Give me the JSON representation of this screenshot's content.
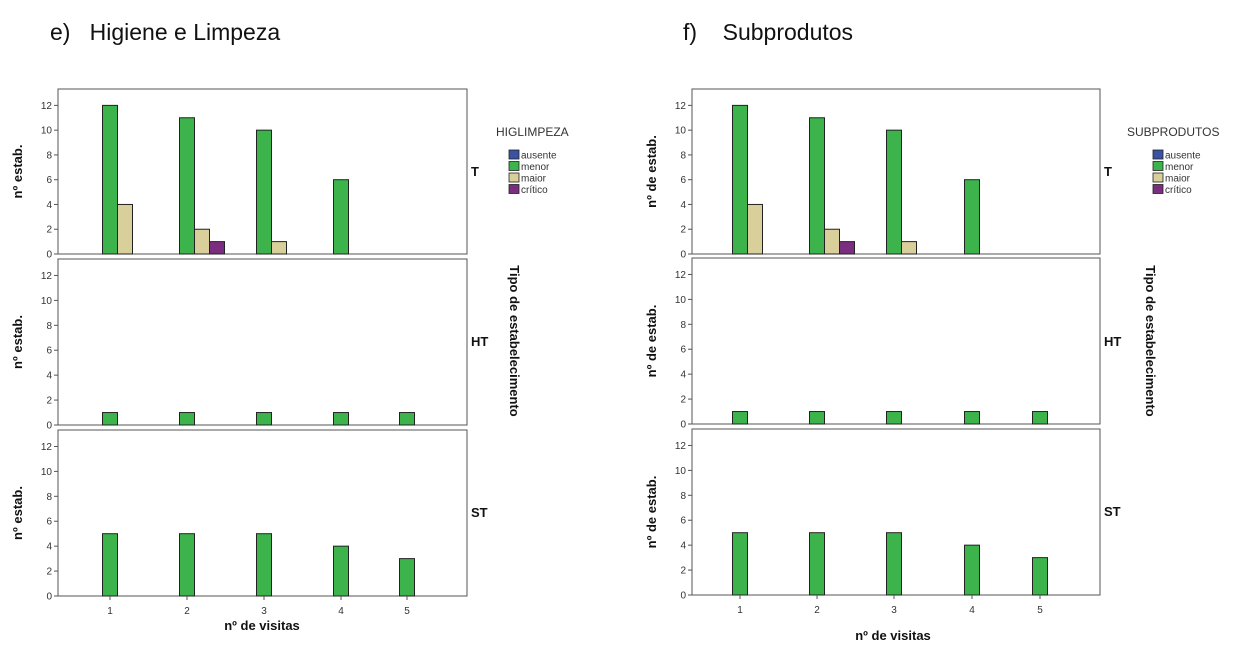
{
  "chart_data": [
    {
      "type": "bar",
      "heading": "e)   Higiene e Limpeza",
      "legend_title": "HIGLIMPEZA",
      "legend_position": "top-right",
      "ylabel": "nº estab.",
      "xlabel": "nº de visitas",
      "facet_title": "Tipo de estabelecimento",
      "categories": [
        "1",
        "2",
        "3",
        "4",
        "5"
      ],
      "ylim": [
        0,
        13
      ],
      "yticks": [
        "0",
        "2",
        "4",
        "6",
        "8",
        "10",
        "12"
      ],
      "grid": false,
      "panels": [
        {
          "label": "T",
          "series": [
            {
              "name": "ausente",
              "values": [
                0,
                0,
                0,
                0,
                0
              ]
            },
            {
              "name": "menor",
              "values": [
                12,
                11,
                10,
                6,
                0
              ]
            },
            {
              "name": "maior",
              "values": [
                4,
                2,
                1,
                0,
                0
              ]
            },
            {
              "name": "crítico",
              "values": [
                0,
                1,
                0,
                0,
                0
              ]
            }
          ]
        },
        {
          "label": "HT",
          "series": [
            {
              "name": "ausente",
              "values": [
                0,
                0,
                0,
                0,
                0
              ]
            },
            {
              "name": "menor",
              "values": [
                1,
                1,
                1,
                1,
                1
              ]
            },
            {
              "name": "maior",
              "values": [
                0,
                0,
                0,
                0,
                0
              ]
            },
            {
              "name": "crítico",
              "values": [
                0,
                0,
                0,
                0,
                0
              ]
            }
          ]
        },
        {
          "label": "ST",
          "series": [
            {
              "name": "ausente",
              "values": [
                0,
                0,
                0,
                0,
                0
              ]
            },
            {
              "name": "menor",
              "values": [
                5,
                5,
                5,
                4,
                3
              ]
            },
            {
              "name": "maior",
              "values": [
                0,
                0,
                0,
                0,
                0
              ]
            },
            {
              "name": "crítico",
              "values": [
                0,
                0,
                0,
                0,
                0
              ]
            }
          ]
        }
      ]
    },
    {
      "type": "bar",
      "heading": "f)    Subprodutos",
      "legend_title": "SUBPRODUTOS",
      "legend_position": "top-right",
      "ylabel": "nº de estab.",
      "xlabel": "nº de visitas",
      "facet_title": "Tipo de estabelecimento",
      "categories": [
        "1",
        "2",
        "3",
        "4",
        "5"
      ],
      "ylim": [
        0,
        13
      ],
      "yticks": [
        "0",
        "2",
        "4",
        "6",
        "8",
        "10",
        "12"
      ],
      "grid": false,
      "panels": [
        {
          "label": "T",
          "series": [
            {
              "name": "ausente",
              "values": [
                0,
                0,
                0,
                0,
                0
              ]
            },
            {
              "name": "menor",
              "values": [
                12,
                11,
                10,
                6,
                0
              ]
            },
            {
              "name": "maior",
              "values": [
                4,
                2,
                1,
                0,
                0
              ]
            },
            {
              "name": "crítico",
              "values": [
                0,
                1,
                0,
                0,
                0
              ]
            }
          ]
        },
        {
          "label": "HT",
          "series": [
            {
              "name": "ausente",
              "values": [
                0,
                0,
                0,
                0,
                0
              ]
            },
            {
              "name": "menor",
              "values": [
                1,
                1,
                1,
                1,
                1
              ]
            },
            {
              "name": "maior",
              "values": [
                0,
                0,
                0,
                0,
                0
              ]
            },
            {
              "name": "crítico",
              "values": [
                0,
                0,
                0,
                0,
                0
              ]
            }
          ]
        },
        {
          "label": "ST",
          "series": [
            {
              "name": "ausente",
              "values": [
                0,
                0,
                0,
                0,
                0
              ]
            },
            {
              "name": "menor",
              "values": [
                5,
                5,
                5,
                4,
                3
              ]
            },
            {
              "name": "maior",
              "values": [
                0,
                0,
                0,
                0,
                0
              ]
            },
            {
              "name": "crítico",
              "values": [
                0,
                0,
                0,
                0,
                0
              ]
            }
          ]
        }
      ]
    }
  ],
  "series_colors": {
    "ausente": "#3b52a3",
    "menor": "#3cb44b",
    "maior": "#d8cf9b",
    "crítico": "#7b2d7f"
  }
}
